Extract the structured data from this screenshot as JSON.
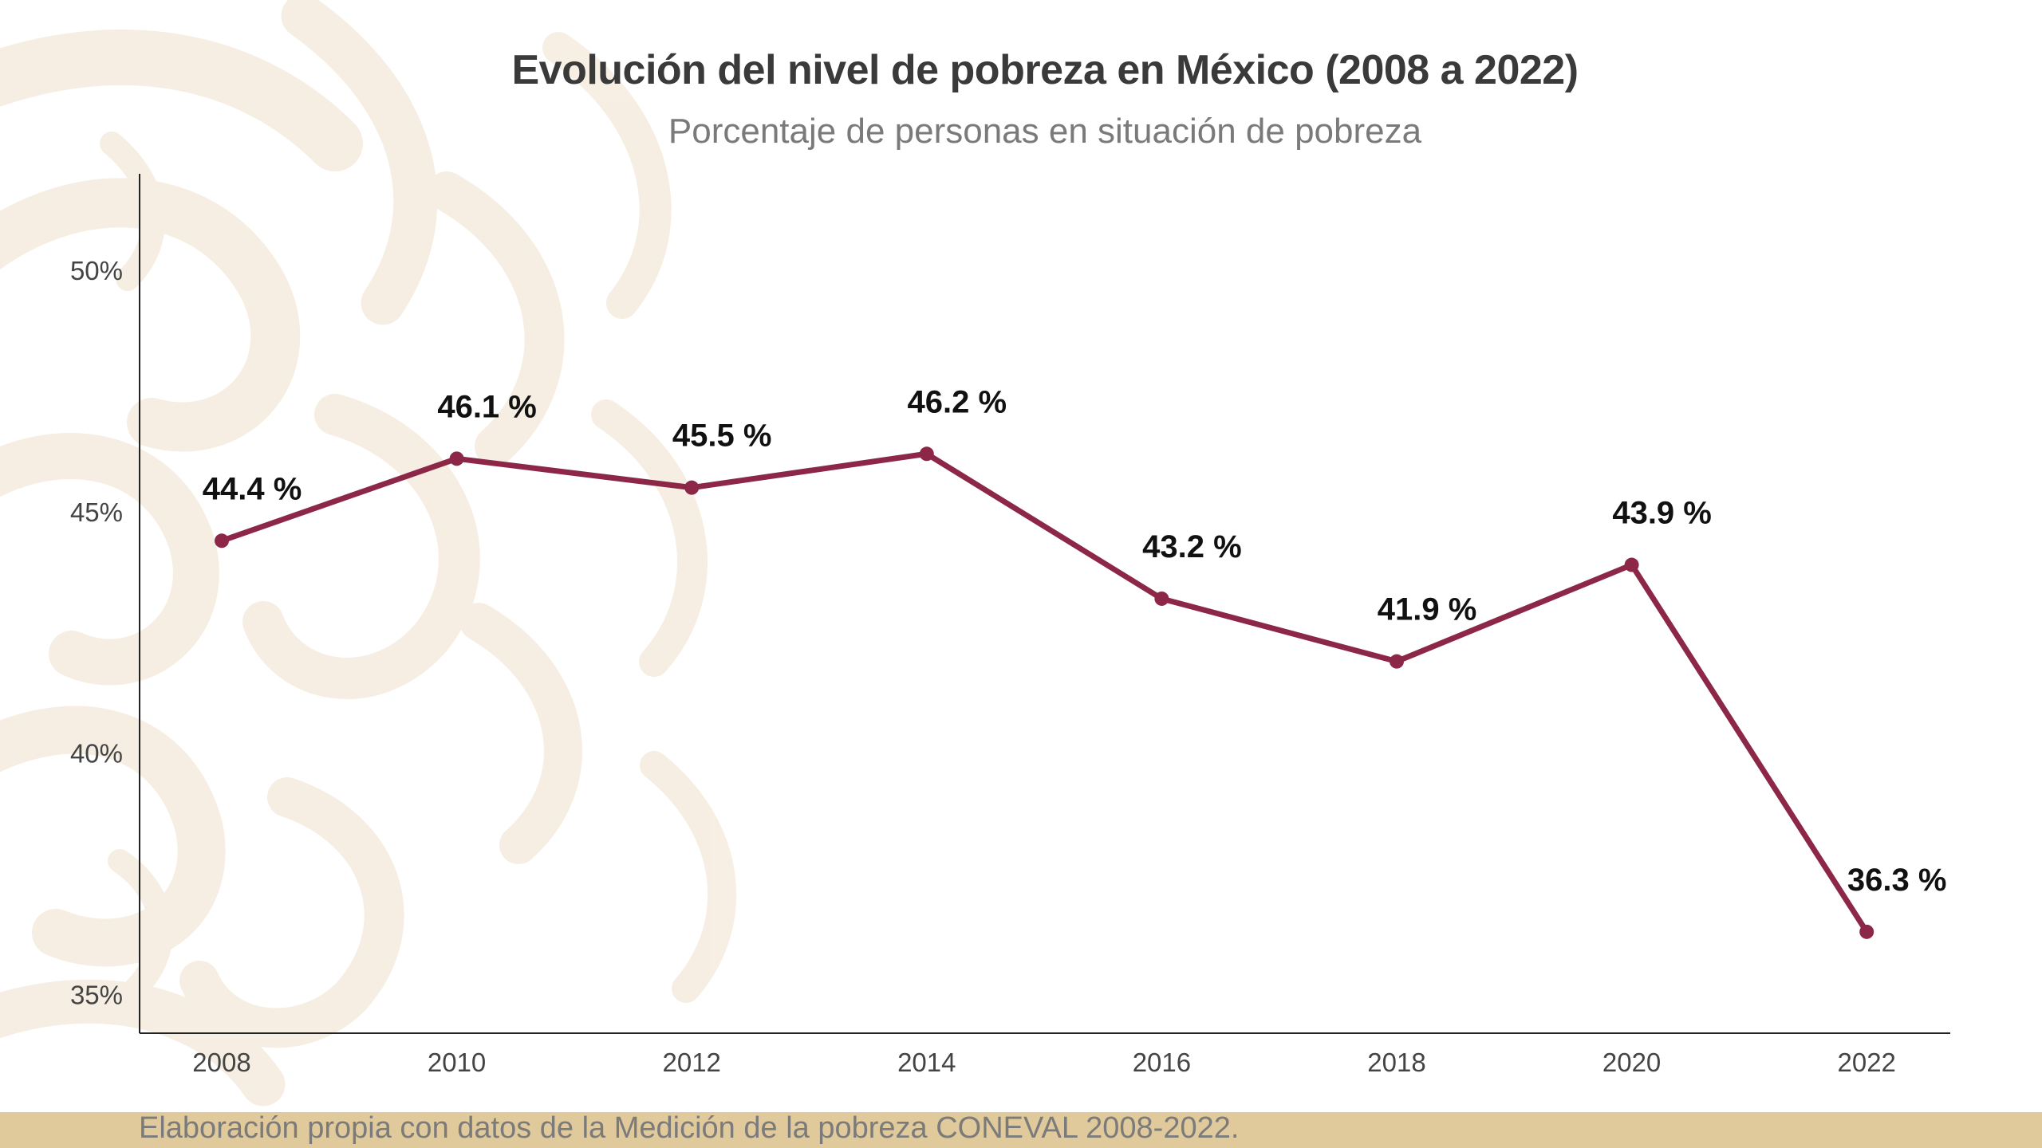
{
  "chart_data": {
    "type": "line",
    "title": "Evolución del nivel de pobreza en México (2008 a 2022)",
    "subtitle": "Porcentaje de personas en situación de pobreza",
    "x": [
      "2008",
      "2010",
      "2012",
      "2014",
      "2016",
      "2018",
      "2020",
      "2022"
    ],
    "series": [
      {
        "values": [
          44.4,
          46.1,
          45.5,
          46.2,
          43.2,
          41.9,
          43.9,
          36.3
        ],
        "labels": [
          "44.4 %",
          "46.1 %",
          "45.5 %",
          "46.2 %",
          "43.2 %",
          "41.9 %",
          "43.9 %",
          "36.3 %"
        ],
        "color": "#8c2748"
      }
    ],
    "y_ticks": [
      35,
      40,
      45,
      50
    ],
    "y_tick_labels": [
      "35%",
      "40%",
      "45%",
      "50%"
    ],
    "ylim": [
      34.2,
      52.0
    ],
    "grid": false,
    "legend": "none"
  },
  "footer": {
    "source": "Elaboración propia con datos de la Medición de la pobreza CONEVAL 2008-2022."
  },
  "colors": {
    "line": "#8c2748",
    "footer_band": "#e0c99a",
    "ornament": "#f3e7d7"
  }
}
